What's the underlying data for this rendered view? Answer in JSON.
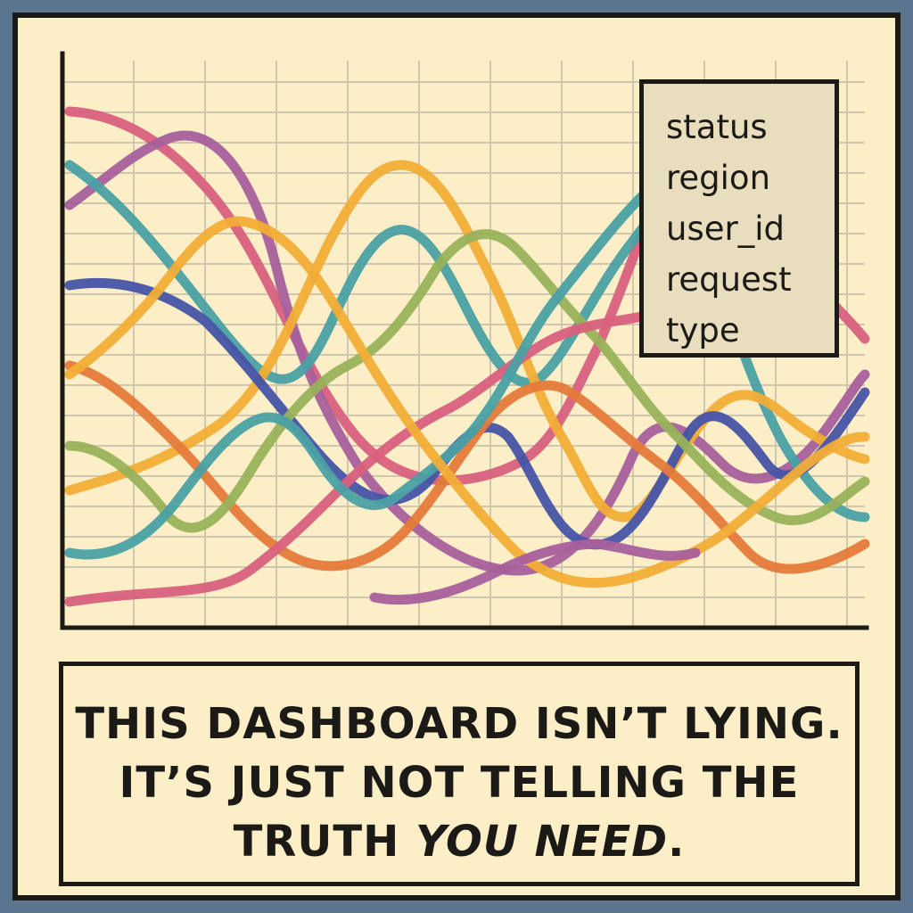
{
  "palette": {
    "frame": "#5b7490",
    "paper": "#fcefc8",
    "ink": "#1c1a17",
    "grid": "#cfc7b0",
    "legend_fill": "#e8ddbd"
  },
  "chart": {
    "legend": [
      "status",
      "region",
      "user_id",
      "request",
      "type"
    ],
    "line_colors": [
      "#d9607e",
      "#a8609c",
      "#4aa0a4",
      "#f2ad36",
      "#4654a6",
      "#e57a3a",
      "#98b25a"
    ]
  },
  "caption": {
    "line1": "THIS DASHBOARD ISN’T LYING.",
    "line2": "IT’S JUST NOT TELLING THE",
    "line3_start": "TRUTH ",
    "line3_emph": "YOU NEED",
    "line3_end": "."
  }
}
